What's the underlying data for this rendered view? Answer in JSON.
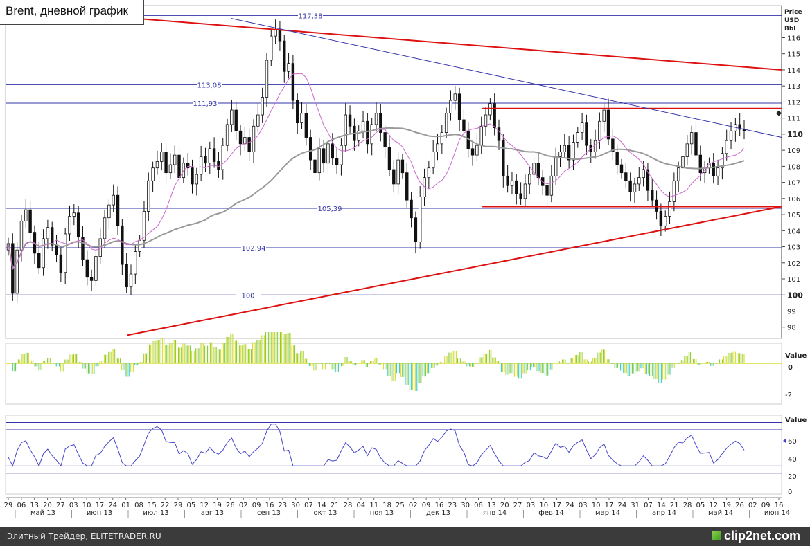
{
  "title": "Brent, дневной график",
  "footer": {
    "source": "Элитный Трейдер, ELITETRADER.RU",
    "logo": "clip2net.com"
  },
  "colors": {
    "candle": "#111111",
    "ma_slow": "#999999",
    "ma_fast": "#cc66cc",
    "level": "#3333aa",
    "trend": "#dd1111",
    "osc": "#4444cc",
    "hist_up": "#88cc44",
    "hist_down": "#44cccc",
    "hist_yellow": "#dddd33"
  },
  "chart_data": [
    {
      "type": "candlestick",
      "title": "Brent, дневной график",
      "ylabel": "Price USD Bbl",
      "ylabel_lines": [
        "Price",
        "USD",
        "Bbl"
      ],
      "ylim": [
        97.3,
        118.0
      ],
      "y_ticks": [
        "98",
        "99",
        "100",
        "101",
        "102",
        "103",
        "104",
        "105",
        "106",
        "107",
        "108",
        "109",
        "110",
        "111",
        "112",
        "113",
        "114",
        "115",
        "116"
      ],
      "y_ticks_bold": [
        "100",
        "110"
      ],
      "current_price": 110,
      "levels": [
        {
          "label": "117,38",
          "value": 117.38
        },
        {
          "label": "113,08",
          "value": 113.08
        },
        {
          "label": "111,93",
          "value": 111.93
        },
        {
          "label": "105,39",
          "value": 105.39
        },
        {
          "label": "102,94",
          "value": 102.94
        },
        {
          "label": "100",
          "value": 100
        }
      ],
      "trendlines": [
        {
          "name": "resistance",
          "from": [
            "2013-05-01",
            117.8
          ],
          "to": [
            "2014-06-18",
            114.0
          ]
        },
        {
          "name": "support",
          "from": [
            "2013-07-01",
            97.5
          ],
          "to": [
            "2014-06-18",
            105.5
          ]
        },
        {
          "name": "range-top",
          "from": [
            "2014-01-08",
            111.6
          ],
          "to": [
            "2014-06-18",
            111.6
          ]
        },
        {
          "name": "range-bottom",
          "from": [
            "2014-01-08",
            105.5
          ],
          "to": [
            "2014-06-18",
            105.5
          ]
        },
        {
          "name": "channel",
          "from": [
            "2013-08-26",
            117.2
          ],
          "to": [
            "2014-06-18",
            109.8
          ]
        }
      ],
      "x_ticks": [
        "29",
        "06",
        "13",
        "20",
        "27",
        "03",
        "10",
        "17",
        "24",
        "01",
        "08",
        "15",
        "22",
        "29",
        "05",
        "12",
        "19",
        "26",
        "02",
        "09",
        "16",
        "23",
        "30",
        "07",
        "14",
        "21",
        "28",
        "04",
        "11",
        "18",
        "25",
        "02",
        "09",
        "16",
        "23",
        "30",
        "06",
        "13",
        "20",
        "27",
        "03",
        "10",
        "17",
        "24",
        "03",
        "10",
        "17",
        "24",
        "31",
        "07",
        "14",
        "21",
        "28",
        "05",
        "12",
        "19",
        "26",
        "02",
        "09",
        "16"
      ],
      "months": [
        "май 13",
        "июн 13",
        "июл 13",
        "авг 13",
        "сен 13",
        "окт 13",
        "ноя 13",
        "дек 13",
        "янв 14",
        "фев 14",
        "мар 14",
        "апр 14",
        "май 14",
        "июн 14"
      ],
      "series_close": [
        103.2,
        100.1,
        102.8,
        104.6,
        105.3,
        103.9,
        102.6,
        101.7,
        103.5,
        104.2,
        103.1,
        102.5,
        101.4,
        103.8,
        104.9,
        105.1,
        103.6,
        102.2,
        101.1,
        100.9,
        102.4,
        103.5,
        104.8,
        105.6,
        106.2,
        104.3,
        101.9,
        100.5,
        101.3,
        102.7,
        103.4,
        105.2,
        107.1,
        107.9,
        108.3,
        108.9,
        107.6,
        108.1,
        108.7,
        107.3,
        108.2,
        107.9,
        106.9,
        107.5,
        108.6,
        108.2,
        109.1,
        108.3,
        107.8,
        109.3,
        110.6,
        111.5,
        110.2,
        109.4,
        109.8,
        108.9,
        110.5,
        111.2,
        112.3,
        114.6,
        116.1,
        116.5,
        115.8,
        113.9,
        114.4,
        112.1,
        110.7,
        111.3,
        109.8,
        108.4,
        107.6,
        109.1,
        108.2,
        109.4,
        108.5,
        108.1,
        109.3,
        111.2,
        110.5,
        109.6,
        110.2,
        110.8,
        109.4,
        110.6,
        111.3,
        110.1,
        109.2,
        107.8,
        106.9,
        108.4,
        107.6,
        105.9,
        104.8,
        103.3,
        106.1,
        107.3,
        107.9,
        108.9,
        109.4,
        110.1,
        111.3,
        112.1,
        112.5,
        110.9,
        110.2,
        109.1,
        108.7,
        109.3,
        110.5,
        111.2,
        111.9,
        110.4,
        109.6,
        107.4,
        106.8,
        107.1,
        106.3,
        106.0,
        106.9,
        107.5,
        108.2,
        107.3,
        106.8,
        106.2,
        107.4,
        108.6,
        108.9,
        109.3,
        108.4,
        109.5,
        110.1,
        110.7,
        109.3,
        108.9,
        109.6,
        110.8,
        111.5,
        109.7,
        108.9,
        108.1,
        107.6,
        107.1,
        106.4,
        106.9,
        107.3,
        107.8,
        106.5,
        105.9,
        105.2,
        104.3,
        104.9,
        105.8,
        107.1,
        107.9,
        108.6,
        109.4,
        110.1,
        108.7,
        107.6,
        107.9,
        108.2,
        107.4,
        107.9,
        108.8,
        109.6,
        110.2,
        110.6,
        110.3,
        110.2
      ]
    },
    {
      "type": "bar",
      "name": "histogram",
      "ylabel": "Value",
      "y_ticks": [
        "0",
        "-2"
      ],
      "ylim": [
        -2.5,
        2.5
      ]
    },
    {
      "type": "line",
      "name": "oscillator",
      "ylabel": "Value",
      "y_ticks": [
        "60",
        "40",
        "20",
        "0"
      ],
      "ylim": [
        -5,
        100
      ],
      "levels": [
        90,
        80,
        30,
        20
      ]
    }
  ]
}
